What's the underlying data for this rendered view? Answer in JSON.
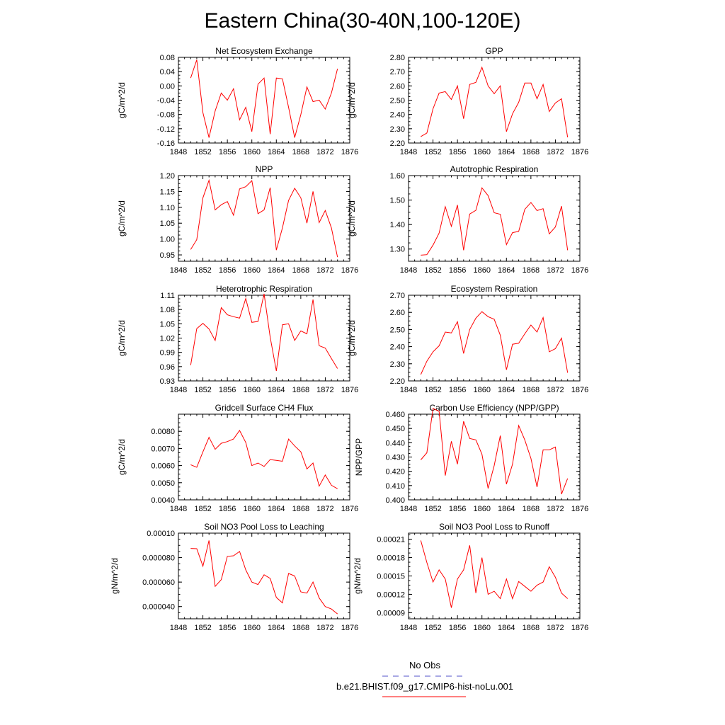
{
  "title": "Eastern China(30-40N,100-120E)",
  "legend": {
    "obs_label": "No Obs",
    "model_label": "b.e21.BHIST.f09_g17.CMIP6-hist-noLu.001",
    "obs_color": "#5050c8",
    "model_color": "#ff0000"
  },
  "chart_data": [
    {
      "type": "line",
      "title": "Net Ecosystem Exchange",
      "ylabel": "gC/m^2/d",
      "xlim": [
        1848,
        1876
      ],
      "ylim": [
        -0.16,
        0.08
      ],
      "xticks": [
        "1848",
        "1852",
        "1856",
        "1860",
        "1864",
        "1868",
        "1872",
        "1876"
      ],
      "yticks": [
        "-0.16",
        "-0.12",
        "-0.08",
        "-0.04",
        "0.00",
        "0.04",
        "0.08"
      ],
      "x": [
        1850,
        1851,
        1852,
        1853,
        1854,
        1855,
        1856,
        1857,
        1858,
        1859,
        1860,
        1861,
        1862,
        1863,
        1864,
        1865,
        1866,
        1867,
        1868,
        1869,
        1870,
        1871,
        1872,
        1873,
        1874
      ],
      "values": [
        0.022,
        0.073,
        -0.075,
        -0.145,
        -0.07,
        -0.02,
        -0.04,
        -0.008,
        -0.095,
        -0.06,
        -0.128,
        0.005,
        0.022,
        -0.135,
        0.022,
        0.02,
        -0.06,
        -0.145,
        -0.08,
        -0.003,
        -0.044,
        -0.04,
        -0.065,
        -0.02,
        0.048
      ]
    },
    {
      "type": "line",
      "title": "GPP",
      "ylabel": "gC/m^2/d",
      "xlim": [
        1848,
        1876
      ],
      "ylim": [
        2.2,
        2.8
      ],
      "xticks": [
        "1848",
        "1852",
        "1856",
        "1860",
        "1864",
        "1868",
        "1872",
        "1876"
      ],
      "yticks": [
        "2.20",
        "2.30",
        "2.40",
        "2.50",
        "2.60",
        "2.70",
        "2.80"
      ],
      "x": [
        1850,
        1851,
        1852,
        1853,
        1854,
        1855,
        1856,
        1857,
        1858,
        1859,
        1860,
        1861,
        1862,
        1863,
        1864,
        1865,
        1866,
        1867,
        1868,
        1869,
        1870,
        1871,
        1872,
        1873,
        1874
      ],
      "values": [
        2.245,
        2.27,
        2.44,
        2.55,
        2.56,
        2.505,
        2.6,
        2.37,
        2.61,
        2.625,
        2.73,
        2.6,
        2.545,
        2.6,
        2.28,
        2.405,
        2.485,
        2.62,
        2.62,
        2.51,
        2.61,
        2.42,
        2.48,
        2.51,
        2.24
      ]
    },
    {
      "type": "line",
      "title": "NPP",
      "ylabel": "gC/m^2/d",
      "xlim": [
        1848,
        1876
      ],
      "ylim": [
        0.93,
        1.2
      ],
      "xticks": [
        "1848",
        "1852",
        "1856",
        "1860",
        "1864",
        "1868",
        "1872",
        "1876"
      ],
      "yticks": [
        "0.95",
        "1.00",
        "1.05",
        "1.10",
        "1.15",
        "1.20"
      ],
      "x": [
        1850,
        1851,
        1852,
        1853,
        1854,
        1855,
        1856,
        1857,
        1858,
        1859,
        1860,
        1861,
        1862,
        1863,
        1864,
        1865,
        1866,
        1867,
        1868,
        1869,
        1870,
        1871,
        1872,
        1873,
        1874
      ],
      "values": [
        0.967,
        0.998,
        1.13,
        1.185,
        1.092,
        1.108,
        1.118,
        1.075,
        1.158,
        1.165,
        1.184,
        1.08,
        1.092,
        1.162,
        0.965,
        1.035,
        1.122,
        1.16,
        1.13,
        1.05,
        1.15,
        1.052,
        1.09,
        1.035,
        0.943
      ]
    },
    {
      "type": "line",
      "title": "Autotrophic Respiration",
      "ylabel": "gC/m^2/d",
      "xlim": [
        1848,
        1876
      ],
      "ylim": [
        1.25,
        1.6
      ],
      "xticks": [
        "1848",
        "1852",
        "1856",
        "1860",
        "1864",
        "1868",
        "1872",
        "1876"
      ],
      "yticks": [
        "1.30",
        "1.40",
        "1.50",
        "1.60"
      ],
      "x": [
        1850,
        1851,
        1852,
        1853,
        1854,
        1855,
        1856,
        1857,
        1858,
        1859,
        1860,
        1861,
        1862,
        1863,
        1864,
        1865,
        1866,
        1867,
        1868,
        1869,
        1870,
        1871,
        1872,
        1873,
        1874
      ],
      "values": [
        1.275,
        1.277,
        1.316,
        1.365,
        1.473,
        1.393,
        1.48,
        1.295,
        1.443,
        1.458,
        1.55,
        1.518,
        1.448,
        1.442,
        1.318,
        1.367,
        1.372,
        1.462,
        1.49,
        1.457,
        1.465,
        1.362,
        1.39,
        1.475,
        1.295
      ]
    },
    {
      "type": "line",
      "title": "Heterotrophic Respiration",
      "ylabel": "gC/m^2/d",
      "xlim": [
        1848,
        1876
      ],
      "ylim": [
        0.93,
        1.11
      ],
      "xticks": [
        "1848",
        "1852",
        "1856",
        "1860",
        "1864",
        "1868",
        "1872",
        "1876"
      ],
      "yticks": [
        "0.93",
        "0.96",
        "0.99",
        "1.02",
        "1.05",
        "1.08",
        "1.11"
      ],
      "x": [
        1850,
        1851,
        1852,
        1853,
        1854,
        1855,
        1856,
        1857,
        1858,
        1859,
        1860,
        1861,
        1862,
        1863,
        1864,
        1865,
        1866,
        1867,
        1868,
        1869,
        1870,
        1871,
        1872,
        1873,
        1874
      ],
      "values": [
        0.963,
        1.04,
        1.051,
        1.039,
        1.015,
        1.084,
        1.069,
        1.065,
        1.062,
        1.103,
        1.053,
        1.055,
        1.113,
        1.022,
        0.951,
        1.048,
        1.05,
        1.015,
        1.035,
        1.029,
        1.101,
        1.004,
        0.999,
        0.977,
        0.956
      ]
    },
    {
      "type": "line",
      "title": "Ecosystem Respiration",
      "ylabel": "gC/m^2/d",
      "xlim": [
        1848,
        1876
      ],
      "ylim": [
        2.2,
        2.7
      ],
      "xticks": [
        "1848",
        "1852",
        "1856",
        "1860",
        "1864",
        "1868",
        "1872",
        "1876"
      ],
      "yticks": [
        "2.20",
        "2.30",
        "2.40",
        "2.50",
        "2.60",
        "2.70"
      ],
      "x": [
        1850,
        1851,
        1852,
        1853,
        1854,
        1855,
        1856,
        1857,
        1858,
        1859,
        1860,
        1861,
        1862,
        1863,
        1864,
        1865,
        1866,
        1867,
        1868,
        1869,
        1870,
        1871,
        1872,
        1873,
        1874
      ],
      "values": [
        2.237,
        2.315,
        2.37,
        2.405,
        2.485,
        2.48,
        2.546,
        2.36,
        2.5,
        2.566,
        2.604,
        2.575,
        2.56,
        2.467,
        2.265,
        2.414,
        2.42,
        2.475,
        2.526,
        2.485,
        2.57,
        2.37,
        2.388,
        2.45,
        2.248
      ]
    },
    {
      "type": "line",
      "title": "Gridcell Surface CH4 Flux",
      "ylabel": "gC/m^2/d",
      "xlim": [
        1848,
        1876
      ],
      "ylim": [
        0.004,
        0.009
      ],
      "xticks": [
        "1848",
        "1852",
        "1856",
        "1860",
        "1864",
        "1868",
        "1872",
        "1876"
      ],
      "yticks": [
        "0.0040",
        "0.0050",
        "0.0060",
        "0.0070",
        "0.0080"
      ],
      "x": [
        1850,
        1851,
        1852,
        1853,
        1854,
        1855,
        1856,
        1857,
        1858,
        1859,
        1860,
        1861,
        1862,
        1863,
        1864,
        1865,
        1866,
        1867,
        1868,
        1869,
        1870,
        1871,
        1872,
        1873,
        1874
      ],
      "values": [
        0.00605,
        0.0059,
        0.0068,
        0.00765,
        0.00695,
        0.0073,
        0.0074,
        0.00755,
        0.00805,
        0.00735,
        0.006,
        0.00615,
        0.00595,
        0.00635,
        0.0063,
        0.00625,
        0.00755,
        0.00715,
        0.0068,
        0.0058,
        0.00615,
        0.0048,
        0.00545,
        0.00485,
        0.00465
      ]
    },
    {
      "type": "line",
      "title": "Carbon Use Efficiency (NPP/GPP)",
      "ylabel": "NPP/GPP",
      "xlim": [
        1848,
        1876
      ],
      "ylim": [
        0.4,
        0.46
      ],
      "xticks": [
        "1848",
        "1852",
        "1856",
        "1860",
        "1864",
        "1868",
        "1872",
        "1876"
      ],
      "yticks": [
        "0.400",
        "0.410",
        "0.420",
        "0.430",
        "0.440",
        "0.450",
        "0.460"
      ],
      "x": [
        1850,
        1851,
        1852,
        1853,
        1854,
        1855,
        1856,
        1857,
        1858,
        1859,
        1860,
        1861,
        1862,
        1863,
        1864,
        1865,
        1866,
        1867,
        1868,
        1869,
        1870,
        1871,
        1872,
        1873,
        1874
      ],
      "values": [
        0.428,
        0.433,
        0.464,
        0.462,
        0.417,
        0.441,
        0.425,
        0.455,
        0.443,
        0.442,
        0.432,
        0.408,
        0.424,
        0.445,
        0.411,
        0.425,
        0.452,
        0.442,
        0.429,
        0.409,
        0.435,
        0.435,
        0.437,
        0.404,
        0.415
      ]
    },
    {
      "type": "line",
      "title": "Soil NO3 Pool Loss to Leaching",
      "ylabel": "gN/m^2/d",
      "xlim": [
        1848,
        1876
      ],
      "ylim": [
        3e-05,
        0.0001
      ],
      "xticks": [
        "1848",
        "1852",
        "1856",
        "1860",
        "1864",
        "1868",
        "1872",
        "1876"
      ],
      "yticks": [
        "0.000040",
        "0.000060",
        "0.000080",
        "0.00010"
      ],
      "x": [
        1850,
        1851,
        1852,
        1853,
        1854,
        1855,
        1856,
        1857,
        1858,
        1859,
        1860,
        1861,
        1862,
        1863,
        1864,
        1865,
        1866,
        1867,
        1868,
        1869,
        1870,
        1871,
        1872,
        1873,
        1874
      ],
      "values": [
        8.75e-05,
        8.73e-05,
        7.3e-05,
        9.4e-05,
        5.65e-05,
        6.2e-05,
        8.1e-05,
        8.15e-05,
        8.5e-05,
        7e-05,
        6e-05,
        5.8e-05,
        6.6e-05,
        6.3e-05,
        4.75e-05,
        4.3e-05,
        6.7e-05,
        6.5e-05,
        5.2e-05,
        5.1e-05,
        6e-05,
        4.7e-05,
        4e-05,
        3.8e-05,
        3.4e-05
      ]
    },
    {
      "type": "line",
      "title": "Soil NO3 Pool Loss to Runoff",
      "ylabel": "gN/m^2/d",
      "xlim": [
        1848,
        1876
      ],
      "ylim": [
        8e-05,
        0.00022
      ],
      "xticks": [
        "1848",
        "1852",
        "1856",
        "1860",
        "1864",
        "1868",
        "1872",
        "1876"
      ],
      "yticks": [
        "0.00009",
        "0.00012",
        "0.00015",
        "0.00018",
        "0.00021"
      ],
      "x": [
        1850,
        1851,
        1852,
        1853,
        1854,
        1855,
        1856,
        1857,
        1858,
        1859,
        1860,
        1861,
        1862,
        1863,
        1864,
        1865,
        1866,
        1867,
        1868,
        1869,
        1870,
        1871,
        1872,
        1873,
        1874
      ],
      "values": [
        0.000208,
        0.000172,
        0.00014,
        0.00016,
        0.000145,
        9.8e-05,
        0.000145,
        0.00016,
        0.0002,
        0.000122,
        0.00018,
        0.00012,
        0.000125,
        0.000113,
        0.000145,
        0.000113,
        0.000141,
        0.000133,
        0.000125,
        0.000135,
        0.00014,
        0.000165,
        0.000148,
        0.000122,
        0.000113
      ]
    }
  ]
}
